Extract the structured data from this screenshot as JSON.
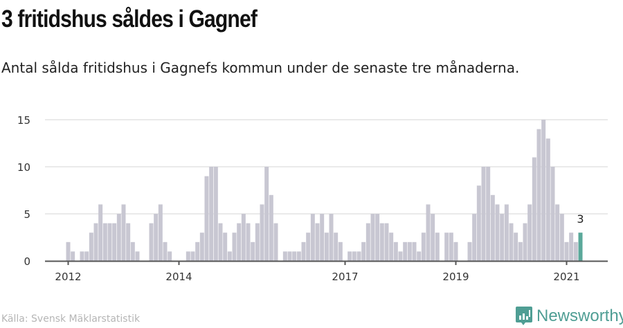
{
  "header": {
    "title": "3 fritidshus såldes i Gagnef",
    "subtitle": "Antal sålda fritidshus i Gagnefs kommun under de senaste tre månaderna."
  },
  "footer": {
    "source": "Källa: Svensk Mäklarstatistik",
    "logo_text": "Newsworthy"
  },
  "colors": {
    "bar": "#c8c7d2",
    "highlight": "#5aa89a",
    "grid": "#e3e3e3",
    "axis": "#555555"
  },
  "chart_data": {
    "type": "bar",
    "title": "3 fritidshus såldes i Gagnef",
    "xlabel": "",
    "ylabel": "",
    "ylim": [
      0,
      15
    ],
    "yticks": [
      "0",
      "5",
      "10",
      "15"
    ],
    "ytick_values": [
      0,
      5,
      10,
      15
    ],
    "xticks": [
      {
        "label": "2012",
        "month_index": 0
      },
      {
        "label": "2014",
        "month_index": 24
      },
      {
        "label": "2017",
        "month_index": 60
      },
      {
        "label": "2019",
        "month_index": 84
      },
      {
        "label": "2021",
        "month_index": 108
      }
    ],
    "start": "2012-01",
    "frequency": "monthly",
    "values": [
      2,
      1,
      0,
      1,
      1,
      3,
      4,
      6,
      4,
      4,
      4,
      5,
      6,
      4,
      2,
      1,
      0,
      0,
      4,
      5,
      6,
      2,
      1,
      0,
      0,
      0,
      1,
      1,
      2,
      3,
      9,
      10,
      10,
      4,
      3,
      1,
      3,
      4,
      5,
      4,
      2,
      4,
      6,
      10,
      7,
      4,
      0,
      1,
      1,
      1,
      1,
      2,
      3,
      5,
      4,
      5,
      3,
      5,
      3,
      2,
      0,
      1,
      1,
      1,
      2,
      4,
      5,
      5,
      4,
      4,
      3,
      2,
      1,
      2,
      2,
      2,
      1,
      3,
      6,
      5,
      3,
      0,
      3,
      3,
      2,
      0,
      0,
      2,
      5,
      8,
      10,
      10,
      7,
      6,
      5,
      6,
      4,
      3,
      2,
      4,
      6,
      11,
      14,
      15,
      13,
      10,
      6,
      5,
      2,
      3,
      2,
      3
    ],
    "highlight_index": 111,
    "annotation": "3",
    "grid": true
  }
}
